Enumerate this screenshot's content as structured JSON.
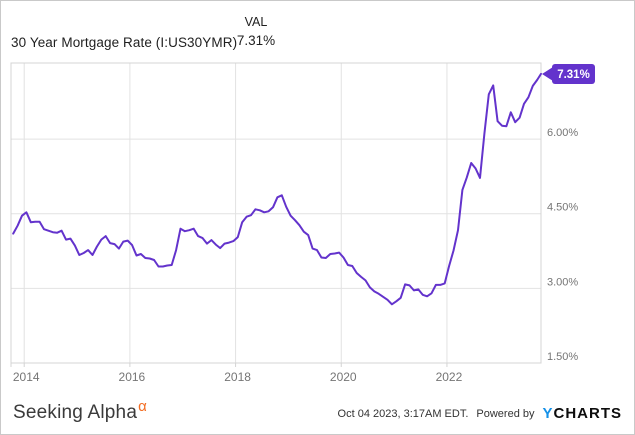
{
  "header": {
    "title": "30 Year Mortgage Rate (I:US30YMR)",
    "val_label": "VAL",
    "val_value": "7.31%"
  },
  "badge": {
    "text": "7.31%",
    "color": "#6333cc",
    "text_color": "#ffffff"
  },
  "footer": {
    "brand": "Seeking Alpha",
    "brand_alpha": "α",
    "timestamp": "Oct 04 2023, 3:17AM EDT.",
    "powered_by": "Powered by",
    "ycharts_y": "Y",
    "ycharts_rest": "CHARTS"
  },
  "chart_data": {
    "type": "line",
    "title": "30 Year Mortgage Rate (I:US30YMR)",
    "series_name": "30 Year Mortgage Rate",
    "line_color": "#6333cc",
    "grid_color": "#e2e2e2",
    "border_color": "#d4d4d4",
    "axis_label_color": "#757575",
    "grid": true,
    "legend_position": "none",
    "xlim": [
      2013.75,
      2023.78
    ],
    "ylim": [
      1.5,
      7.53
    ],
    "x_ticks": [
      2014,
      2016,
      2018,
      2020,
      2022
    ],
    "x_tick_labels": [
      "2014",
      "2016",
      "2018",
      "2020",
      "2022"
    ],
    "y_ticks": [
      6.0,
      4.5,
      3.0,
      1.5
    ],
    "y_tick_labels": [
      "6.00%",
      "4.50%",
      "3.00%",
      "1.50%"
    ],
    "last_value": 7.31,
    "last_value_label": "7.31%",
    "dates": [
      "2013-10",
      "2013-11",
      "2013-12",
      "2014-01",
      "2014-02",
      "2014-03",
      "2014-04",
      "2014-05",
      "2014-06",
      "2014-07",
      "2014-08",
      "2014-09",
      "2014-10",
      "2014-11",
      "2014-12",
      "2015-01",
      "2015-02",
      "2015-03",
      "2015-04",
      "2015-05",
      "2015-06",
      "2015-07",
      "2015-08",
      "2015-09",
      "2015-10",
      "2015-11",
      "2015-12",
      "2016-01",
      "2016-02",
      "2016-03",
      "2016-04",
      "2016-05",
      "2016-06",
      "2016-07",
      "2016-08",
      "2016-09",
      "2016-10",
      "2016-11",
      "2016-12",
      "2017-01",
      "2017-02",
      "2017-03",
      "2017-04",
      "2017-05",
      "2017-06",
      "2017-07",
      "2017-08",
      "2017-09",
      "2017-10",
      "2017-11",
      "2017-12",
      "2018-01",
      "2018-02",
      "2018-03",
      "2018-04",
      "2018-05",
      "2018-06",
      "2018-07",
      "2018-08",
      "2018-09",
      "2018-10",
      "2018-11",
      "2018-12",
      "2019-01",
      "2019-02",
      "2019-03",
      "2019-04",
      "2019-05",
      "2019-06",
      "2019-07",
      "2019-08",
      "2019-09",
      "2019-10",
      "2019-11",
      "2019-12",
      "2020-01",
      "2020-02",
      "2020-03",
      "2020-04",
      "2020-05",
      "2020-06",
      "2020-07",
      "2020-08",
      "2020-09",
      "2020-10",
      "2020-11",
      "2020-12",
      "2021-01",
      "2021-02",
      "2021-03",
      "2021-04",
      "2021-05",
      "2021-06",
      "2021-07",
      "2021-08",
      "2021-09",
      "2021-10",
      "2021-11",
      "2021-12",
      "2022-01",
      "2022-02",
      "2022-03",
      "2022-04",
      "2022-05",
      "2022-06",
      "2022-07",
      "2022-08",
      "2022-09",
      "2022-10",
      "2022-11",
      "2022-12",
      "2023-01",
      "2023-02",
      "2023-03",
      "2023-04",
      "2023-05",
      "2023-06",
      "2023-07",
      "2023-08",
      "2023-09",
      "2023-10"
    ],
    "values": [
      4.1,
      4.26,
      4.46,
      4.53,
      4.33,
      4.34,
      4.34,
      4.19,
      4.16,
      4.13,
      4.12,
      4.16,
      3.98,
      4.0,
      3.86,
      3.67,
      3.71,
      3.77,
      3.67,
      3.84,
      3.98,
      4.05,
      3.91,
      3.89,
      3.8,
      3.94,
      3.96,
      3.87,
      3.66,
      3.69,
      3.61,
      3.6,
      3.57,
      3.44,
      3.44,
      3.46,
      3.47,
      3.77,
      4.2,
      4.15,
      4.17,
      4.2,
      4.05,
      4.01,
      3.9,
      3.97,
      3.88,
      3.81,
      3.9,
      3.92,
      3.95,
      4.03,
      4.33,
      4.44,
      4.47,
      4.59,
      4.57,
      4.53,
      4.55,
      4.63,
      4.83,
      4.87,
      4.64,
      4.46,
      4.37,
      4.27,
      4.14,
      4.07,
      3.8,
      3.77,
      3.62,
      3.61,
      3.69,
      3.7,
      3.72,
      3.62,
      3.47,
      3.45,
      3.31,
      3.23,
      3.16,
      3.02,
      2.94,
      2.89,
      2.83,
      2.77,
      2.68,
      2.74,
      2.81,
      3.08,
      3.06,
      2.96,
      2.98,
      2.87,
      2.84,
      2.9,
      3.07,
      3.07,
      3.1,
      3.45,
      3.76,
      4.17,
      4.98,
      5.23,
      5.52,
      5.41,
      5.22,
      6.11,
      6.9,
      7.08,
      6.36,
      6.27,
      6.26,
      6.54,
      6.34,
      6.43,
      6.71,
      6.84,
      7.07,
      7.19,
      7.31
    ]
  }
}
